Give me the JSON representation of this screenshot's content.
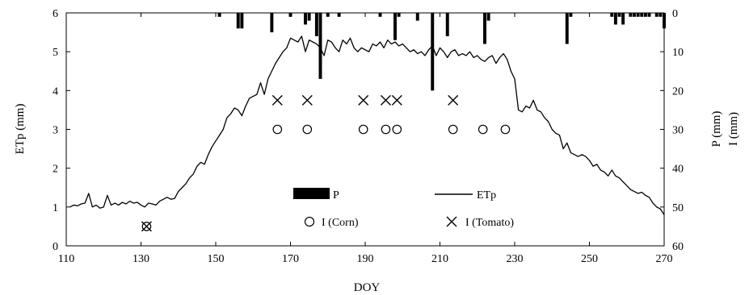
{
  "chart_data": {
    "type": "line",
    "xlabel": "DOY",
    "ylabel": "ETp (mm)",
    "y2label": "P (mm)",
    "y2label_2": "I (mm)",
    "xlim": [
      110,
      270
    ],
    "ylim": [
      0,
      6
    ],
    "y2lim": [
      0,
      60
    ],
    "y2_inverted": true,
    "grid": false,
    "legend_placement": "bottom-center",
    "x_ticks": [
      110,
      130,
      150,
      170,
      190,
      210,
      230,
      250,
      270
    ],
    "y_ticks": [
      0,
      1,
      2,
      3,
      4,
      5,
      6
    ],
    "y2_ticks": [
      0,
      10,
      20,
      30,
      40,
      50,
      60
    ],
    "legend": {
      "p": "P",
      "etp": "ETp",
      "i_corn": "I (Corn)",
      "i_tomato": "I (Tomato)"
    },
    "series": [
      {
        "name": "ETp",
        "axis": "left",
        "style": "line",
        "points": [
          [
            111,
            1.0
          ],
          [
            112,
            1.05
          ],
          [
            113,
            1.03
          ],
          [
            114,
            1.08
          ],
          [
            115,
            1.1
          ],
          [
            116,
            1.35
          ],
          [
            117,
            1.0
          ],
          [
            118,
            1.05
          ],
          [
            119,
            0.97
          ],
          [
            120,
            1.0
          ],
          [
            121,
            1.3
          ],
          [
            122,
            1.05
          ],
          [
            123,
            1.1
          ],
          [
            124,
            1.05
          ],
          [
            125,
            1.12
          ],
          [
            126,
            1.08
          ],
          [
            127,
            1.15
          ],
          [
            128,
            1.1
          ],
          [
            129,
            1.12
          ],
          [
            130,
            1.05
          ],
          [
            131,
            1.0
          ],
          [
            132,
            1.1
          ],
          [
            133,
            1.08
          ],
          [
            134,
            1.05
          ],
          [
            135,
            1.15
          ],
          [
            136,
            1.2
          ],
          [
            137,
            1.25
          ],
          [
            138,
            1.2
          ],
          [
            139,
            1.22
          ],
          [
            140,
            1.4
          ],
          [
            141,
            1.5
          ],
          [
            142,
            1.6
          ],
          [
            143,
            1.75
          ],
          [
            144,
            1.85
          ],
          [
            145,
            2.05
          ],
          [
            146,
            2.15
          ],
          [
            147,
            2.1
          ],
          [
            148,
            2.35
          ],
          [
            149,
            2.55
          ],
          [
            150,
            2.7
          ],
          [
            151,
            2.85
          ],
          [
            152,
            3.0
          ],
          [
            153,
            3.3
          ],
          [
            154,
            3.4
          ],
          [
            155,
            3.55
          ],
          [
            156,
            3.5
          ],
          [
            157,
            3.35
          ],
          [
            158,
            3.6
          ],
          [
            159,
            3.8
          ],
          [
            160,
            3.85
          ],
          [
            161,
            3.9
          ],
          [
            162,
            4.2
          ],
          [
            163,
            3.9
          ],
          [
            164,
            4.3
          ],
          [
            165,
            4.5
          ],
          [
            166,
            4.7
          ],
          [
            167,
            4.85
          ],
          [
            168,
            5.0
          ],
          [
            169,
            5.1
          ],
          [
            170,
            5.35
          ],
          [
            171,
            5.3
          ],
          [
            172,
            5.25
          ],
          [
            173,
            5.4
          ],
          [
            174,
            5.0
          ],
          [
            175,
            5.3
          ],
          [
            176,
            5.25
          ],
          [
            177,
            5.2
          ],
          [
            178,
            5.1
          ],
          [
            179,
            4.9
          ],
          [
            180,
            5.3
          ],
          [
            181,
            5.25
          ],
          [
            182,
            5.1
          ],
          [
            183,
            5.0
          ],
          [
            184,
            5.3
          ],
          [
            185,
            5.2
          ],
          [
            186,
            5.35
          ],
          [
            187,
            5.1
          ],
          [
            188,
            5.0
          ],
          [
            189,
            5.1
          ],
          [
            190,
            5.05
          ],
          [
            191,
            5.0
          ],
          [
            192,
            5.2
          ],
          [
            193,
            5.15
          ],
          [
            194,
            5.25
          ],
          [
            195,
            5.1
          ],
          [
            196,
            5.3
          ],
          [
            197,
            5.2
          ],
          [
            198,
            5.25
          ],
          [
            199,
            5.15
          ],
          [
            200,
            5.2
          ],
          [
            201,
            5.1
          ],
          [
            202,
            5.0
          ],
          [
            203,
            5.05
          ],
          [
            204,
            4.95
          ],
          [
            205,
            5.0
          ],
          [
            206,
            4.9
          ],
          [
            207,
            5.05
          ],
          [
            208,
            5.15
          ],
          [
            209,
            4.9
          ],
          [
            210,
            5.1
          ],
          [
            211,
            5.0
          ],
          [
            212,
            4.85
          ],
          [
            213,
            5.0
          ],
          [
            214,
            5.05
          ],
          [
            215,
            4.9
          ],
          [
            216,
            4.95
          ],
          [
            217,
            4.9
          ],
          [
            218,
            5.0
          ],
          [
            219,
            4.85
          ],
          [
            220,
            4.9
          ],
          [
            221,
            4.8
          ],
          [
            222,
            4.75
          ],
          [
            223,
            4.85
          ],
          [
            224,
            4.9
          ],
          [
            225,
            4.7
          ],
          [
            226,
            4.85
          ],
          [
            227,
            4.95
          ],
          [
            228,
            4.8
          ],
          [
            229,
            4.5
          ],
          [
            230,
            4.3
          ],
          [
            231,
            3.5
          ],
          [
            232,
            3.45
          ],
          [
            233,
            3.6
          ],
          [
            234,
            3.55
          ],
          [
            235,
            3.75
          ],
          [
            236,
            3.5
          ],
          [
            237,
            3.45
          ],
          [
            238,
            3.3
          ],
          [
            239,
            3.2
          ],
          [
            240,
            3.0
          ],
          [
            241,
            2.9
          ],
          [
            242,
            2.85
          ],
          [
            243,
            2.5
          ],
          [
            244,
            2.65
          ],
          [
            245,
            2.4
          ],
          [
            246,
            2.35
          ],
          [
            247,
            2.3
          ],
          [
            248,
            2.35
          ],
          [
            249,
            2.3
          ],
          [
            250,
            2.2
          ],
          [
            251,
            2.05
          ],
          [
            252,
            2.1
          ],
          [
            253,
            1.95
          ],
          [
            254,
            1.9
          ],
          [
            255,
            1.8
          ],
          [
            256,
            1.95
          ],
          [
            257,
            1.8
          ],
          [
            258,
            1.75
          ],
          [
            259,
            1.65
          ],
          [
            260,
            1.55
          ],
          [
            261,
            1.45
          ],
          [
            262,
            1.4
          ],
          [
            263,
            1.35
          ],
          [
            264,
            1.38
          ],
          [
            265,
            1.3
          ],
          [
            266,
            1.25
          ],
          [
            267,
            1.1
          ],
          [
            268,
            1.0
          ],
          [
            269,
            0.95
          ],
          [
            270,
            0.8
          ]
        ]
      },
      {
        "name": "P",
        "axis": "right",
        "style": "bar",
        "x": [
          151,
          156,
          157,
          165,
          170,
          174,
          175,
          177,
          178,
          180,
          183,
          194,
          198,
          199,
          204,
          208,
          212,
          222,
          223,
          244,
          245,
          256,
          257,
          258,
          259,
          261,
          262,
          263,
          264,
          265,
          266,
          268,
          269,
          270
        ],
        "values": [
          1,
          4,
          4,
          5,
          1,
          3,
          2,
          6,
          17,
          1,
          1,
          1,
          7,
          1,
          2,
          20,
          6,
          8,
          2,
          8,
          1,
          1,
          3,
          1,
          3,
          1,
          1,
          1,
          1,
          1,
          1,
          1,
          1,
          4
        ]
      },
      {
        "name": "I (Corn)",
        "axis": "right",
        "style": "circle",
        "points": [
          [
            131.5,
            55
          ],
          [
            166.5,
            30
          ],
          [
            174.5,
            30
          ],
          [
            189.5,
            30
          ],
          [
            195.5,
            30
          ],
          [
            198.5,
            30
          ],
          [
            213.5,
            30
          ],
          [
            221.5,
            30
          ],
          [
            227.5,
            30
          ]
        ]
      },
      {
        "name": "I (Tomato)",
        "axis": "right",
        "style": "cross",
        "points": [
          [
            131.5,
            55
          ],
          [
            166.5,
            22.5
          ],
          [
            174.5,
            22.5
          ],
          [
            189.5,
            22.5
          ],
          [
            195.5,
            22.5
          ],
          [
            198.5,
            22.5
          ],
          [
            213.5,
            22.5
          ]
        ]
      }
    ]
  }
}
